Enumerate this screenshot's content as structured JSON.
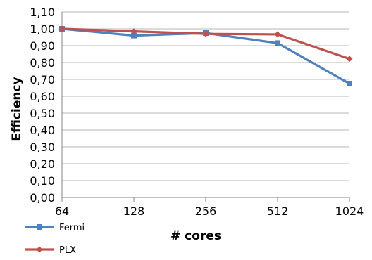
{
  "chart_data": {
    "type": "line",
    "categories": [
      "64",
      "128",
      "256",
      "512",
      "1024"
    ],
    "series": [
      {
        "name": "Fermi",
        "values": [
          1.0,
          0.96,
          0.975,
          0.915,
          0.675
        ],
        "color": "#4f81bd",
        "marker": "square"
      },
      {
        "name": "PLX",
        "values": [
          1.0,
          0.985,
          0.97,
          0.967,
          0.822
        ],
        "color": "#c0504d",
        "marker": "diamond"
      }
    ],
    "xlabel": "# cores",
    "ylabel": "Efficiency",
    "ylim": [
      0,
      1.1
    ],
    "ytick_step": 0.1,
    "yticks": [
      "0,00",
      "0,10",
      "0,20",
      "0,30",
      "0,40",
      "0,50",
      "0,60",
      "0,70",
      "0,80",
      "0,90",
      "1,00",
      "1,10"
    ],
    "grid": "horizontal",
    "legend_position": "bottom-left"
  }
}
